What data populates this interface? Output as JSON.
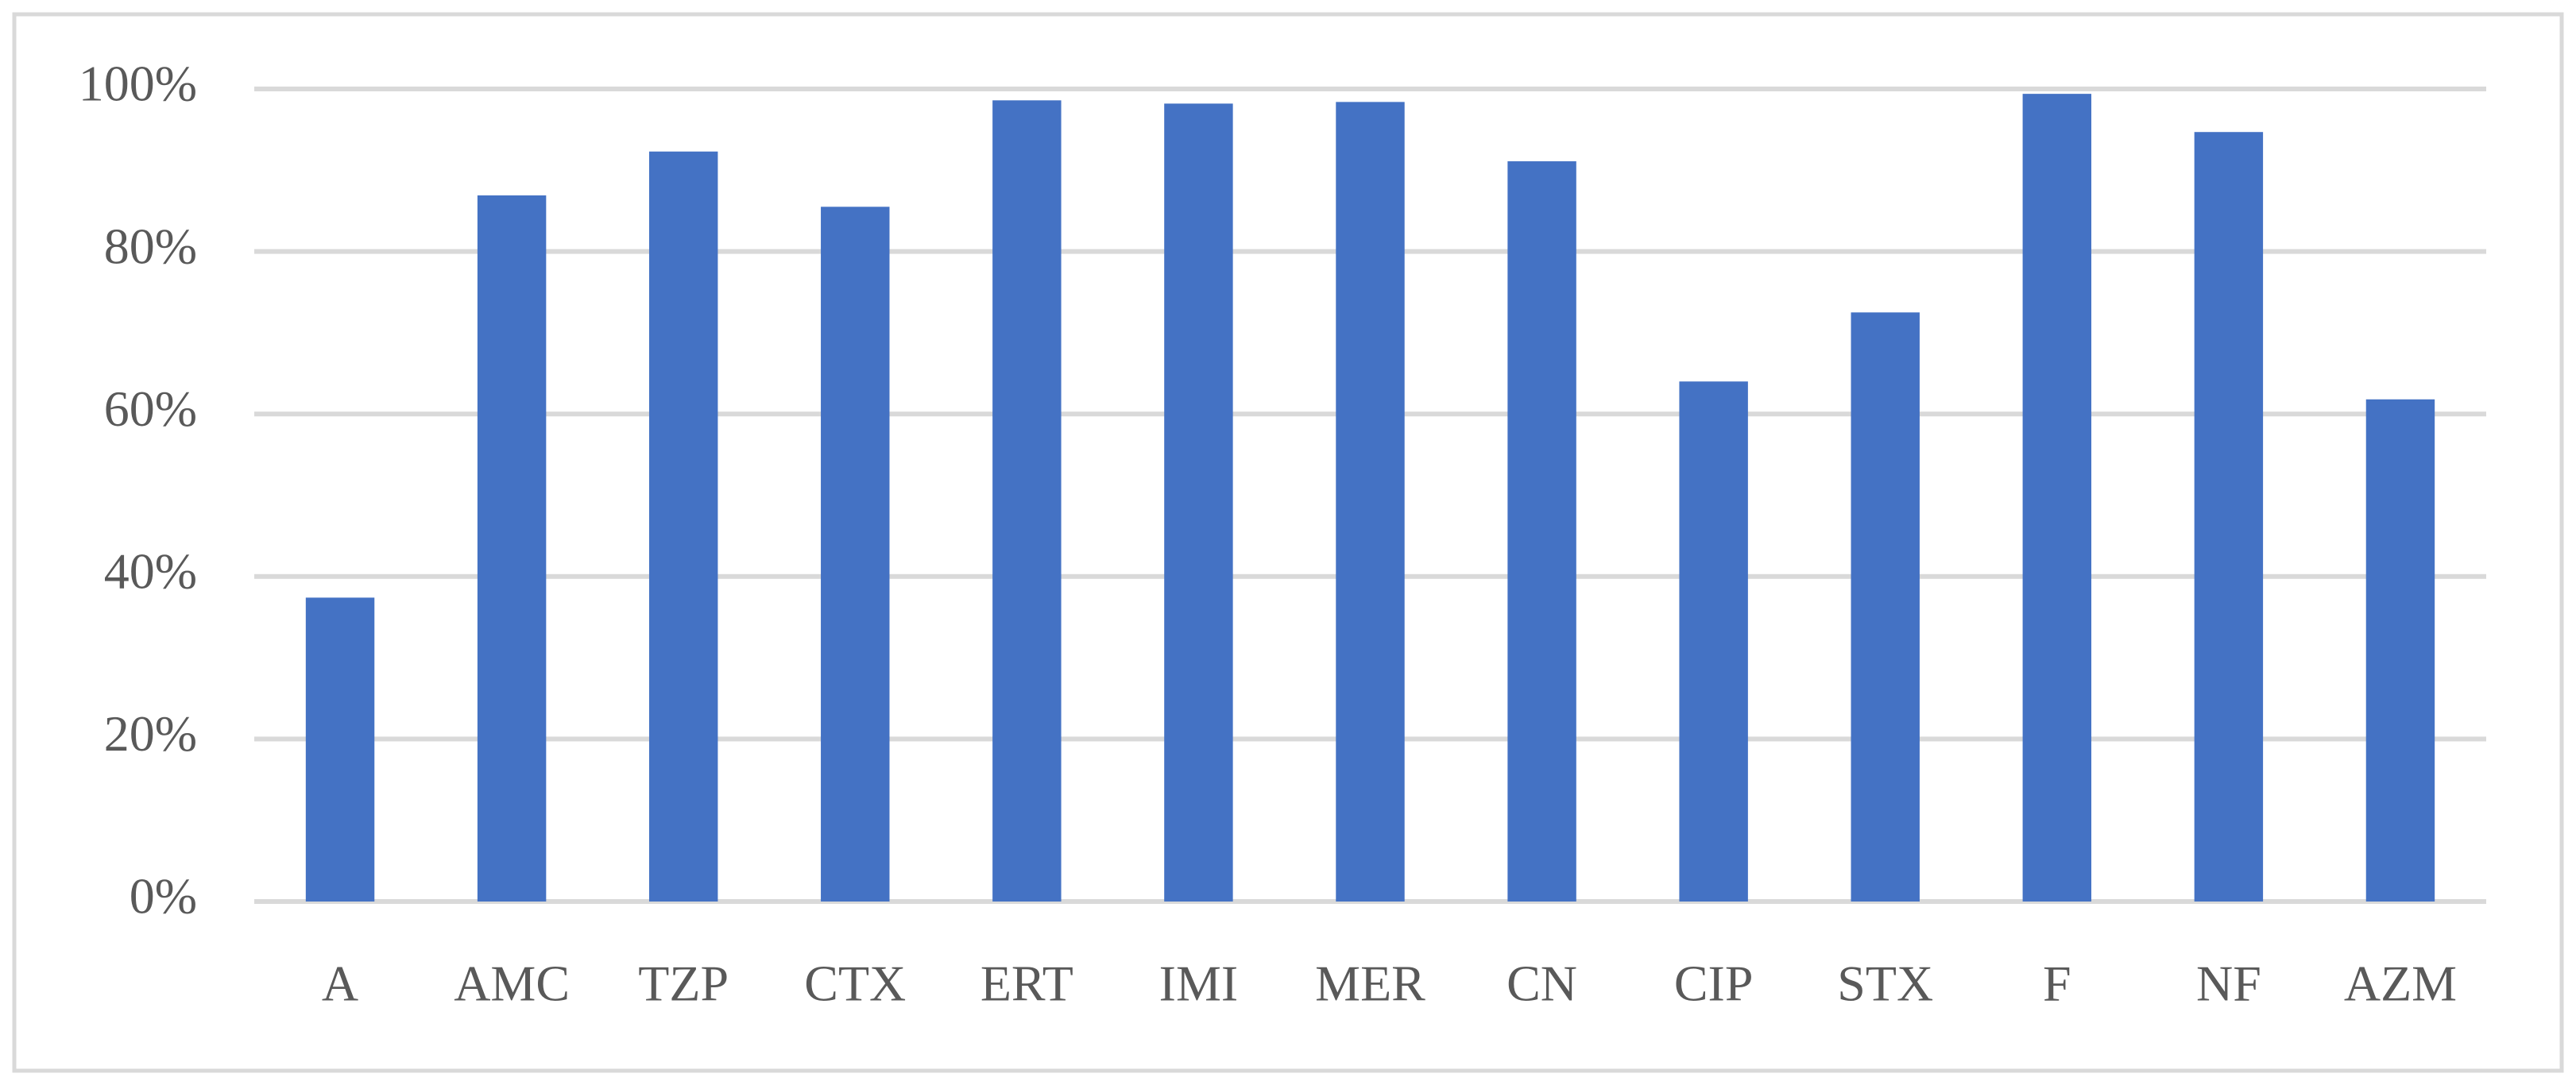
{
  "chart_data": {
    "type": "bar",
    "categories": [
      "A",
      "AMC",
      "TZP",
      "CTX",
      "ERT",
      "IMI",
      "MER",
      "CN",
      "CIP",
      "STX",
      "F",
      "NF",
      "AZM"
    ],
    "values": [
      37.4,
      86.9,
      92.3,
      85.5,
      98.6,
      98.2,
      98.4,
      91.1,
      64.0,
      72.5,
      99.4,
      94.7,
      61.8
    ],
    "color": "#4472c4",
    "ylim": [
      0,
      100
    ],
    "yticks": [
      {
        "value": 0,
        "label": "0%"
      },
      {
        "value": 20,
        "label": "20%"
      },
      {
        "value": 40,
        "label": "40%"
      },
      {
        "value": 60,
        "label": "60%"
      },
      {
        "value": 80,
        "label": "80%"
      },
      {
        "value": 100,
        "label": "100%"
      }
    ],
    "grid": true
  }
}
